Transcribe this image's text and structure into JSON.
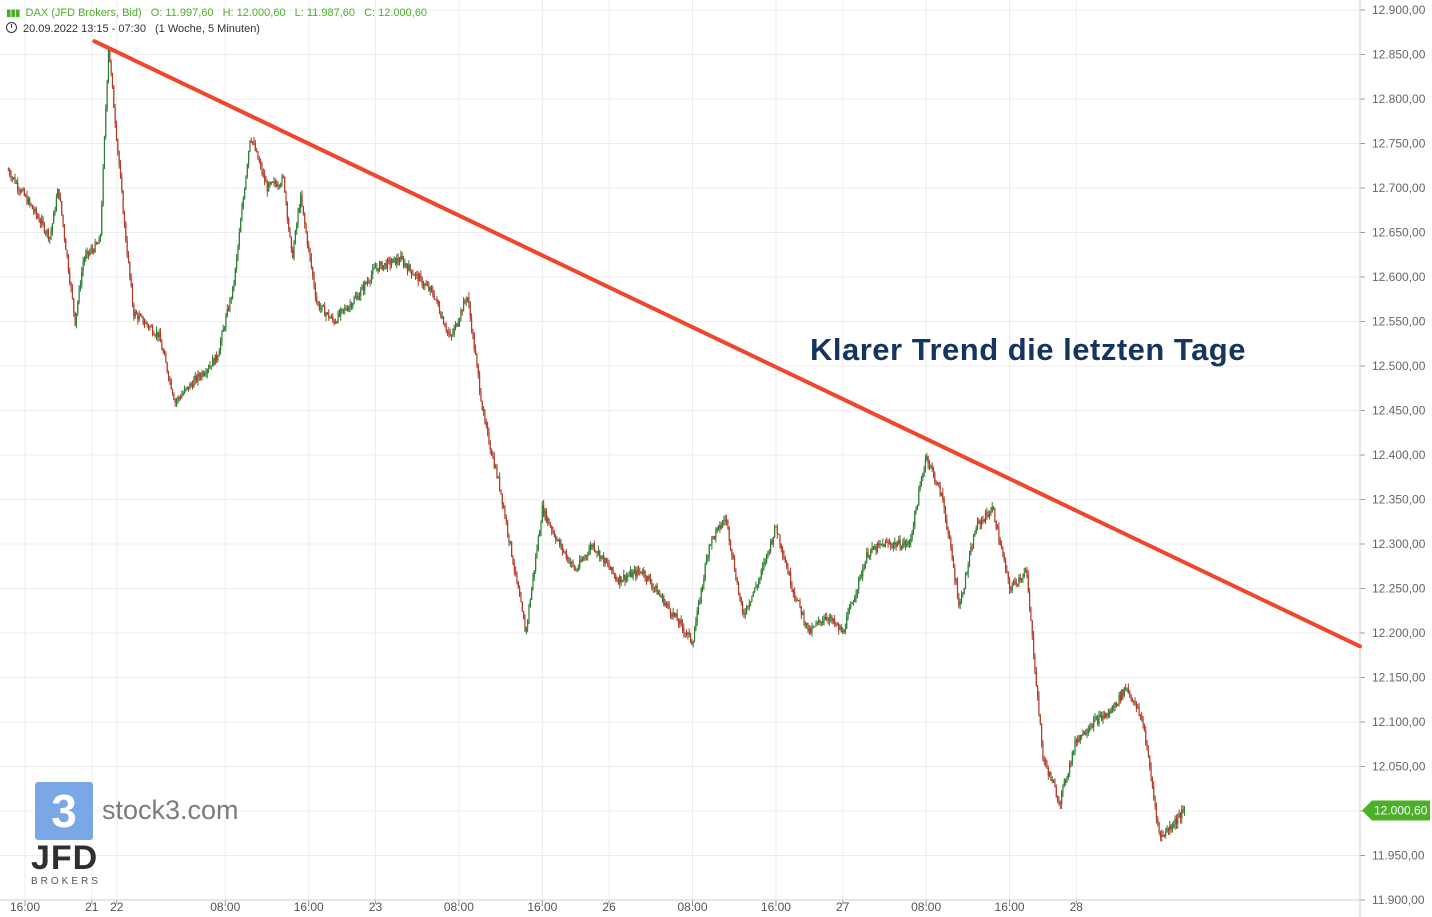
{
  "header": {
    "instrument": "DAX (JFD Brokers, Bid)",
    "open": "O: 11.997,60",
    "high": "H: 12.000,60",
    "low": "L: 11.987,60",
    "close": "C: 12.000,60",
    "timerange": "20.09.2022 13:15 - 07:30",
    "interval": "(1 Woche, 5 Minuten)"
  },
  "annotation": "Klarer Trend die letzten Tage",
  "branding": {
    "logo_digit": "3",
    "site": "stock3.com",
    "broker": "JFD",
    "broker_sub": "BROKERS"
  },
  "colors": {
    "up": "#2e7d32",
    "down": "#b23b2a",
    "trendline": "#f0462d",
    "price_badge": "#4caf2a",
    "grid": "#ececec",
    "annotation": "#14355f"
  },
  "chart_data": {
    "type": "candlestick",
    "title": "",
    "y_axis": {
      "side": "right",
      "ylim": [
        11900,
        12900
      ],
      "step": 50,
      "tick_labels": [
        "12.900,00",
        "12.850,00",
        "12.800,00",
        "12.750,00",
        "12.700,00",
        "12.650,00",
        "12.600,00",
        "12.550,00",
        "12.500,00",
        "12.450,00",
        "12.400,00",
        "12.350,00",
        "12.300,00",
        "12.250,00",
        "12.200,00",
        "12.150,00",
        "12.100,00",
        "12.050,00",
        "12.000,00",
        "11.950,00",
        "11.900,00"
      ]
    },
    "x_axis": {
      "ticks": [
        {
          "label": "16:00",
          "pos": 2
        },
        {
          "label": "21",
          "pos": 10
        },
        {
          "label": "22",
          "pos": 13
        },
        {
          "label": "08:00",
          "pos": 26
        },
        {
          "label": "16:00",
          "pos": 36
        },
        {
          "label": "23",
          "pos": 44
        },
        {
          "label": "08:00",
          "pos": 54
        },
        {
          "label": "16:00",
          "pos": 64
        },
        {
          "label": "26",
          "pos": 72
        },
        {
          "label": "08:00",
          "pos": 82
        },
        {
          "label": "16:00",
          "pos": 92
        },
        {
          "label": "27",
          "pos": 100
        },
        {
          "label": "08:00",
          "pos": 110
        },
        {
          "label": "16:00",
          "pos": 120
        },
        {
          "label": "28",
          "pos": 128
        }
      ],
      "range": [
        -1,
        162
      ]
    },
    "anchors": [
      [
        0,
        12720
      ],
      [
        2,
        12690
      ],
      [
        5,
        12645
      ],
      [
        6,
        12700
      ],
      [
        8,
        12550
      ],
      [
        9,
        12620
      ],
      [
        11,
        12640
      ],
      [
        12,
        12860
      ],
      [
        14,
        12650
      ],
      [
        15,
        12560
      ],
      [
        18,
        12535
      ],
      [
        20,
        12460
      ],
      [
        22,
        12480
      ],
      [
        25,
        12510
      ],
      [
        27,
        12590
      ],
      [
        29,
        12760
      ],
      [
        31,
        12700
      ],
      [
        33,
        12710
      ],
      [
        34,
        12620
      ],
      [
        35,
        12690
      ],
      [
        37,
        12570
      ],
      [
        39,
        12550
      ],
      [
        42,
        12580
      ],
      [
        44,
        12610
      ],
      [
        47,
        12620
      ],
      [
        51,
        12580
      ],
      [
        53,
        12530
      ],
      [
        55,
        12580
      ],
      [
        57,
        12440
      ],
      [
        59,
        12360
      ],
      [
        62,
        12200
      ],
      [
        64,
        12340
      ],
      [
        66,
        12300
      ],
      [
        68,
        12270
      ],
      [
        70,
        12300
      ],
      [
        73,
        12260
      ],
      [
        76,
        12270
      ],
      [
        79,
        12230
      ],
      [
        82,
        12190
      ],
      [
        84,
        12300
      ],
      [
        86,
        12330
      ],
      [
        88,
        12220
      ],
      [
        90,
        12260
      ],
      [
        92,
        12320
      ],
      [
        94,
        12250
      ],
      [
        96,
        12200
      ],
      [
        98,
        12220
      ],
      [
        100,
        12200
      ],
      [
        103,
        12290
      ],
      [
        105,
        12300
      ],
      [
        108,
        12300
      ],
      [
        110,
        12400
      ],
      [
        112,
        12350
      ],
      [
        114,
        12230
      ],
      [
        116,
        12320
      ],
      [
        118,
        12340
      ],
      [
        120,
        12250
      ],
      [
        122,
        12270
      ],
      [
        124,
        12060
      ],
      [
        126,
        12010
      ],
      [
        128,
        12080
      ],
      [
        130,
        12100
      ],
      [
        132,
        12110
      ],
      [
        134,
        12140
      ],
      [
        136,
        12100
      ],
      [
        138,
        11970
      ],
      [
        140,
        11990
      ],
      [
        141,
        12000.6
      ]
    ],
    "ohlc_last": {
      "open": 11997.6,
      "high": 12000.6,
      "low": 11987.6,
      "close": 12000.6
    },
    "last_price_label": "12.000,60",
    "trendline": {
      "from": [
        10.3,
        12865
      ],
      "to": [
        162,
        12185
      ]
    },
    "grid": true
  }
}
